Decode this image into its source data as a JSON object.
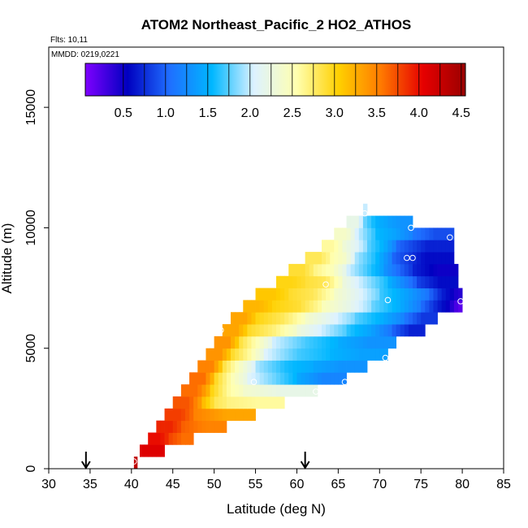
{
  "chart_data": {
    "type": "heatmap",
    "title": "ATOM2 Northeast_Pacific_2 HO2_ATHOS",
    "notes": {
      "flights": "Flts: 10,11",
      "dates": "MMDD: 0219,0221"
    },
    "xlabel": "Latitude (deg N)",
    "ylabel": "Altitude (m)",
    "xlim": [
      30,
      85
    ],
    "ylim": [
      0,
      17500
    ],
    "x_ticks": [
      "30",
      "35",
      "40",
      "45",
      "50",
      "55",
      "60",
      "65",
      "70",
      "75",
      "80",
      "85"
    ],
    "y_ticks": [
      "0",
      "5000",
      "10000",
      "15000"
    ],
    "colorbar": {
      "range": [
        0.05,
        4.55
      ],
      "ticks": [
        "0.5",
        "1.0",
        "1.5",
        "2.0",
        "2.5",
        "3.0",
        "3.5",
        "4.0",
        "4.5"
      ],
      "colors": [
        "#7f00ff",
        "#0000c0",
        "#1f6fff",
        "#00b7ff",
        "#ddf2ff",
        "#ffffb0",
        "#ffd000",
        "#ff7a00",
        "#e60000",
        "#9a0000"
      ]
    },
    "arrow_markers_lat": [
      34.5,
      61.0
    ],
    "bands": [
      {
        "alt": 250,
        "cells": [
          [
            40.3,
            40.7,
            4.3
          ]
        ]
      },
      {
        "alt": 750,
        "cells": [
          [
            41.0,
            44.0,
            4.1
          ]
        ]
      },
      {
        "alt": 1250,
        "cells": [
          [
            42.0,
            44.5,
            4.0
          ],
          [
            44.5,
            47.5,
            3.6
          ]
        ]
      },
      {
        "alt": 1750,
        "cells": [
          [
            43.0,
            46.0,
            3.9
          ],
          [
            46.0,
            51.5,
            3.5
          ]
        ]
      },
      {
        "alt": 2250,
        "cells": [
          [
            44.0,
            47.5,
            3.8
          ],
          [
            47.5,
            55.0,
            3.3
          ]
        ]
      },
      {
        "alt": 2750,
        "cells": [
          [
            45.0,
            48.5,
            3.7
          ],
          [
            48.5,
            51.5,
            2.8
          ],
          [
            51.5,
            58.5,
            2.6
          ]
        ]
      },
      {
        "alt": 3250,
        "cells": [
          [
            46.0,
            49.5,
            3.6
          ],
          [
            49.5,
            53.5,
            2.6
          ],
          [
            53.5,
            62.5,
            2.2
          ]
        ]
      },
      {
        "alt": 3750,
        "cells": [
          [
            47.0,
            50.0,
            3.6
          ],
          [
            50.0,
            54.0,
            2.5
          ],
          [
            54.0,
            60.0,
            1.8
          ],
          [
            60.0,
            66.0,
            1.2
          ]
        ]
      },
      {
        "alt": 4250,
        "cells": [
          [
            48.0,
            51.0,
            3.5
          ],
          [
            51.0,
            55.0,
            2.4
          ],
          [
            55.0,
            62.0,
            1.6
          ],
          [
            62.0,
            68.5,
            1.3
          ]
        ]
      },
      {
        "alt": 4750,
        "cells": [
          [
            49.0,
            52.0,
            3.4
          ],
          [
            52.0,
            56.0,
            2.6
          ],
          [
            56.0,
            64.0,
            1.7
          ],
          [
            64.0,
            71.0,
            1.4
          ]
        ]
      },
      {
        "alt": 5250,
        "cells": [
          [
            50.0,
            53.0,
            3.4
          ],
          [
            53.0,
            57.0,
            2.5
          ],
          [
            57.0,
            65.0,
            1.7
          ],
          [
            65.0,
            72.0,
            1.3
          ]
        ]
      },
      {
        "alt": 5750,
        "cells": [
          [
            51.0,
            54.0,
            3.3
          ],
          [
            54.0,
            60.0,
            2.7
          ],
          [
            60.0,
            66.0,
            2.0
          ],
          [
            66.0,
            71.5,
            1.4
          ],
          [
            71.5,
            75.5,
            0.7
          ]
        ]
      },
      {
        "alt": 6250,
        "cells": [
          [
            52.0,
            55.0,
            3.3
          ],
          [
            55.0,
            61.0,
            2.8
          ],
          [
            61.0,
            67.0,
            2.1
          ],
          [
            67.0,
            73.0,
            1.5
          ],
          [
            73.0,
            77.0,
            0.8
          ]
        ]
      },
      {
        "alt": 6750,
        "cells": [
          [
            53.5,
            57.0,
            3.2
          ],
          [
            57.0,
            63.0,
            2.9
          ],
          [
            63.0,
            69.0,
            2.2
          ],
          [
            69.0,
            75.0,
            1.5
          ],
          [
            75.0,
            78.5,
            0.7
          ],
          [
            78.5,
            80.0,
            0.2
          ]
        ]
      },
      {
        "alt": 7250,
        "cells": [
          [
            55.0,
            59.0,
            3.1
          ],
          [
            59.0,
            64.5,
            2.8
          ],
          [
            64.5,
            70.0,
            2.1
          ],
          [
            70.0,
            76.0,
            1.4
          ],
          [
            76.0,
            78.5,
            0.7
          ],
          [
            78.5,
            80.0,
            0.4
          ]
        ]
      },
      {
        "alt": 7750,
        "cells": [
          [
            57.5,
            61.0,
            3.0
          ],
          [
            61.0,
            65.5,
            2.8
          ],
          [
            65.5,
            71.0,
            1.9
          ],
          [
            71.0,
            74.5,
            1.2
          ],
          [
            74.5,
            79.5,
            0.6
          ]
        ]
      },
      {
        "alt": 8250,
        "cells": [
          [
            59.0,
            62.0,
            2.9
          ],
          [
            62.0,
            66.0,
            2.5
          ],
          [
            66.0,
            70.5,
            1.7
          ],
          [
            70.5,
            74.0,
            1.0
          ],
          [
            74.0,
            79.5,
            0.5
          ]
        ]
      },
      {
        "alt": 8750,
        "cells": [
          [
            61.0,
            64.0,
            2.8
          ],
          [
            64.0,
            67.0,
            2.4
          ],
          [
            67.0,
            71.5,
            1.6
          ],
          [
            71.5,
            79.0,
            0.6
          ]
        ]
      },
      {
        "alt": 9250,
        "cells": [
          [
            63.0,
            65.5,
            2.6
          ],
          [
            65.5,
            68.5,
            2.1
          ],
          [
            68.5,
            72.0,
            1.5
          ],
          [
            72.0,
            79.0,
            0.7
          ]
        ]
      },
      {
        "alt": 9750,
        "cells": [
          [
            64.5,
            67.0,
            2.4
          ],
          [
            67.0,
            69.5,
            1.8
          ],
          [
            69.5,
            74.0,
            1.4
          ],
          [
            74.0,
            79.0,
            0.9
          ]
        ]
      },
      {
        "alt": 10250,
        "cells": [
          [
            66.0,
            68.0,
            2.2
          ],
          [
            68.0,
            71.0,
            1.5
          ],
          [
            71.0,
            74.0,
            1.3
          ]
        ]
      },
      {
        "alt": 10750,
        "cells": [
          [
            68.0,
            68.5,
            2.0
          ]
        ]
      }
    ],
    "observations": [
      [
        40.3,
        300
      ],
      [
        50.8,
        5750
      ],
      [
        54.8,
        3600
      ],
      [
        62.3,
        3200
      ],
      [
        65.8,
        3600
      ],
      [
        63.5,
        7650
      ],
      [
        70.7,
        4600
      ],
      [
        71.0,
        7000
      ],
      [
        73.3,
        8750
      ],
      [
        74.0,
        8750
      ],
      [
        73.8,
        10000
      ],
      [
        78.5,
        9600
      ],
      [
        79.8,
        6950
      ],
      [
        68.2,
        10600
      ]
    ]
  }
}
